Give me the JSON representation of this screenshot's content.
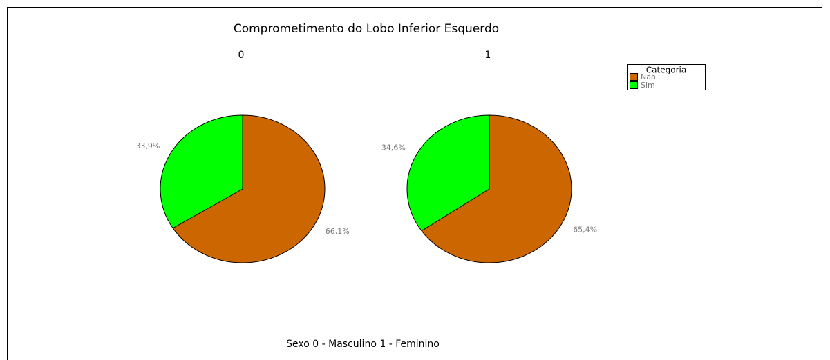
{
  "title": "Comprometimento do Lobo Inferior Esquerdo",
  "caption": "Sexo 0 - Masculino  1 - Feminino",
  "legend": {
    "title": "Categoria",
    "position": "upper right"
  },
  "chart_data": [
    {
      "type": "pie",
      "title": "0",
      "categories": [
        "Não",
        "Sim"
      ],
      "values": [
        66.1,
        33.9
      ],
      "value_labels": [
        "66,1%",
        "33,9%"
      ],
      "colors": [
        "#cc6600",
        "#00ff00"
      ]
    },
    {
      "type": "pie",
      "title": "1",
      "categories": [
        "Não",
        "Sim"
      ],
      "values": [
        65.4,
        34.6
      ],
      "value_labels": [
        "65,4%",
        "34,6%"
      ],
      "colors": [
        "#cc6600",
        "#00ff00"
      ]
    }
  ]
}
